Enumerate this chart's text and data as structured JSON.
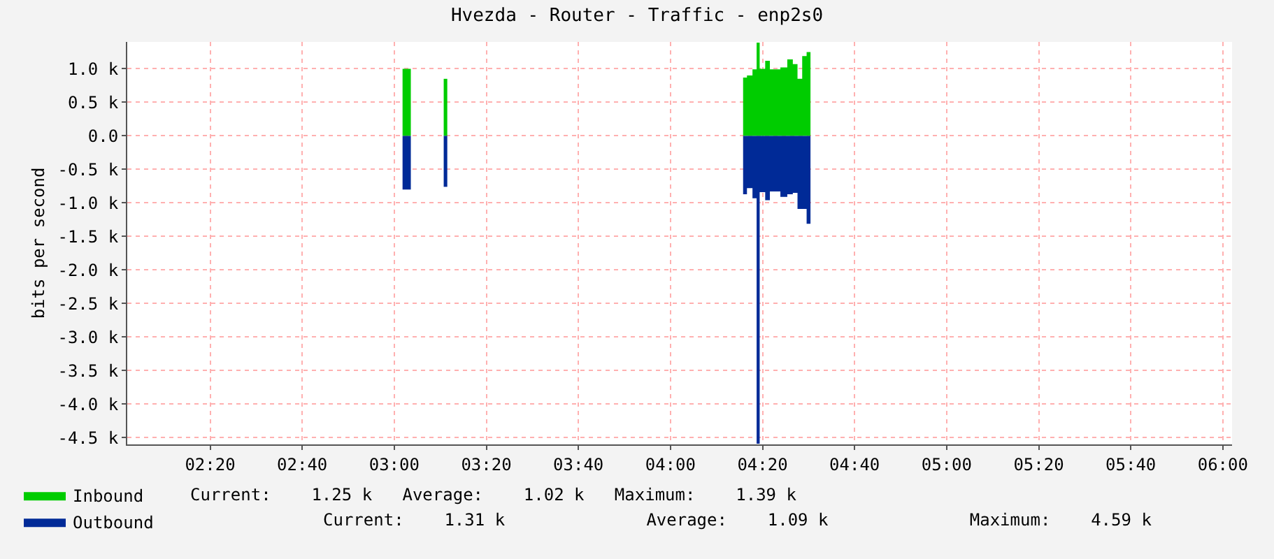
{
  "chart_data": {
    "type": "area",
    "title": "Hvezda - Router - Traffic - enp2s0",
    "ylabel": "bits per second",
    "x": [
      3.03,
      3.06,
      3.179,
      3.192,
      4.263,
      4.277,
      4.297,
      4.312,
      4.323,
      4.343,
      4.36,
      4.398,
      4.423,
      4.443,
      4.46,
      4.477,
      4.493,
      4.507
    ],
    "series": [
      {
        "name": "Inbound",
        "color": "#00cc00",
        "values": [
          1000,
          null,
          850,
          null,
          870,
          900,
          990,
          1390,
          1000,
          1120,
          990,
          1020,
          1140,
          1070,
          850,
          1190,
          1250,
          1250
        ]
      },
      {
        "name": "Outbound",
        "color": "#002a97",
        "values": [
          -800,
          null,
          -760,
          null,
          -870,
          -780,
          -930,
          -4590,
          -840,
          -960,
          -830,
          -910,
          -870,
          -850,
          -1090,
          -1090,
          -1310,
          -1310
        ]
      }
    ],
    "xlim": [
      2.0333,
      6.0333
    ],
    "xticks": [
      {
        "value": 2.3333,
        "label": "02:20"
      },
      {
        "value": 2.6667,
        "label": "02:40"
      },
      {
        "value": 3,
        "label": "03:00"
      },
      {
        "value": 3.3333,
        "label": "03:20"
      },
      {
        "value": 3.6667,
        "label": "03:40"
      },
      {
        "value": 4,
        "label": "04:00"
      },
      {
        "value": 4.3333,
        "label": "04:20"
      },
      {
        "value": 4.6667,
        "label": "04:40"
      },
      {
        "value": 5,
        "label": "05:00"
      },
      {
        "value": 5.3333,
        "label": "05:20"
      },
      {
        "value": 5.6667,
        "label": "05:40"
      },
      {
        "value": 6,
        "label": "06:00"
      }
    ],
    "ylim": [
      -4600,
      1400
    ],
    "yticks": [
      {
        "value": 1000,
        "label": "1.0 k"
      },
      {
        "value": 500,
        "label": "0.5 k"
      },
      {
        "value": 0,
        "label": "0.0"
      },
      {
        "value": -500,
        "label": "-0.5 k"
      },
      {
        "value": -1000,
        "label": "-1.0 k"
      },
      {
        "value": -1500,
        "label": "-1.5 k"
      },
      {
        "value": -2000,
        "label": "-2.0 k"
      },
      {
        "value": -2500,
        "label": "-2.5 k"
      },
      {
        "value": -3000,
        "label": "-3.0 k"
      },
      {
        "value": -3500,
        "label": "-3.5 k"
      },
      {
        "value": -4000,
        "label": "-4.0 k"
      },
      {
        "value": -4500,
        "label": "-4.5 k"
      }
    ],
    "grid": true,
    "legend": "bottom left",
    "annotations": [
      "Current:    1.25 k   Average:    1.02 k   Maximum:    1.39 k",
      "Current:    1.31 k              Average:    1.09 k              Maximum:    4.59 k"
    ]
  }
}
